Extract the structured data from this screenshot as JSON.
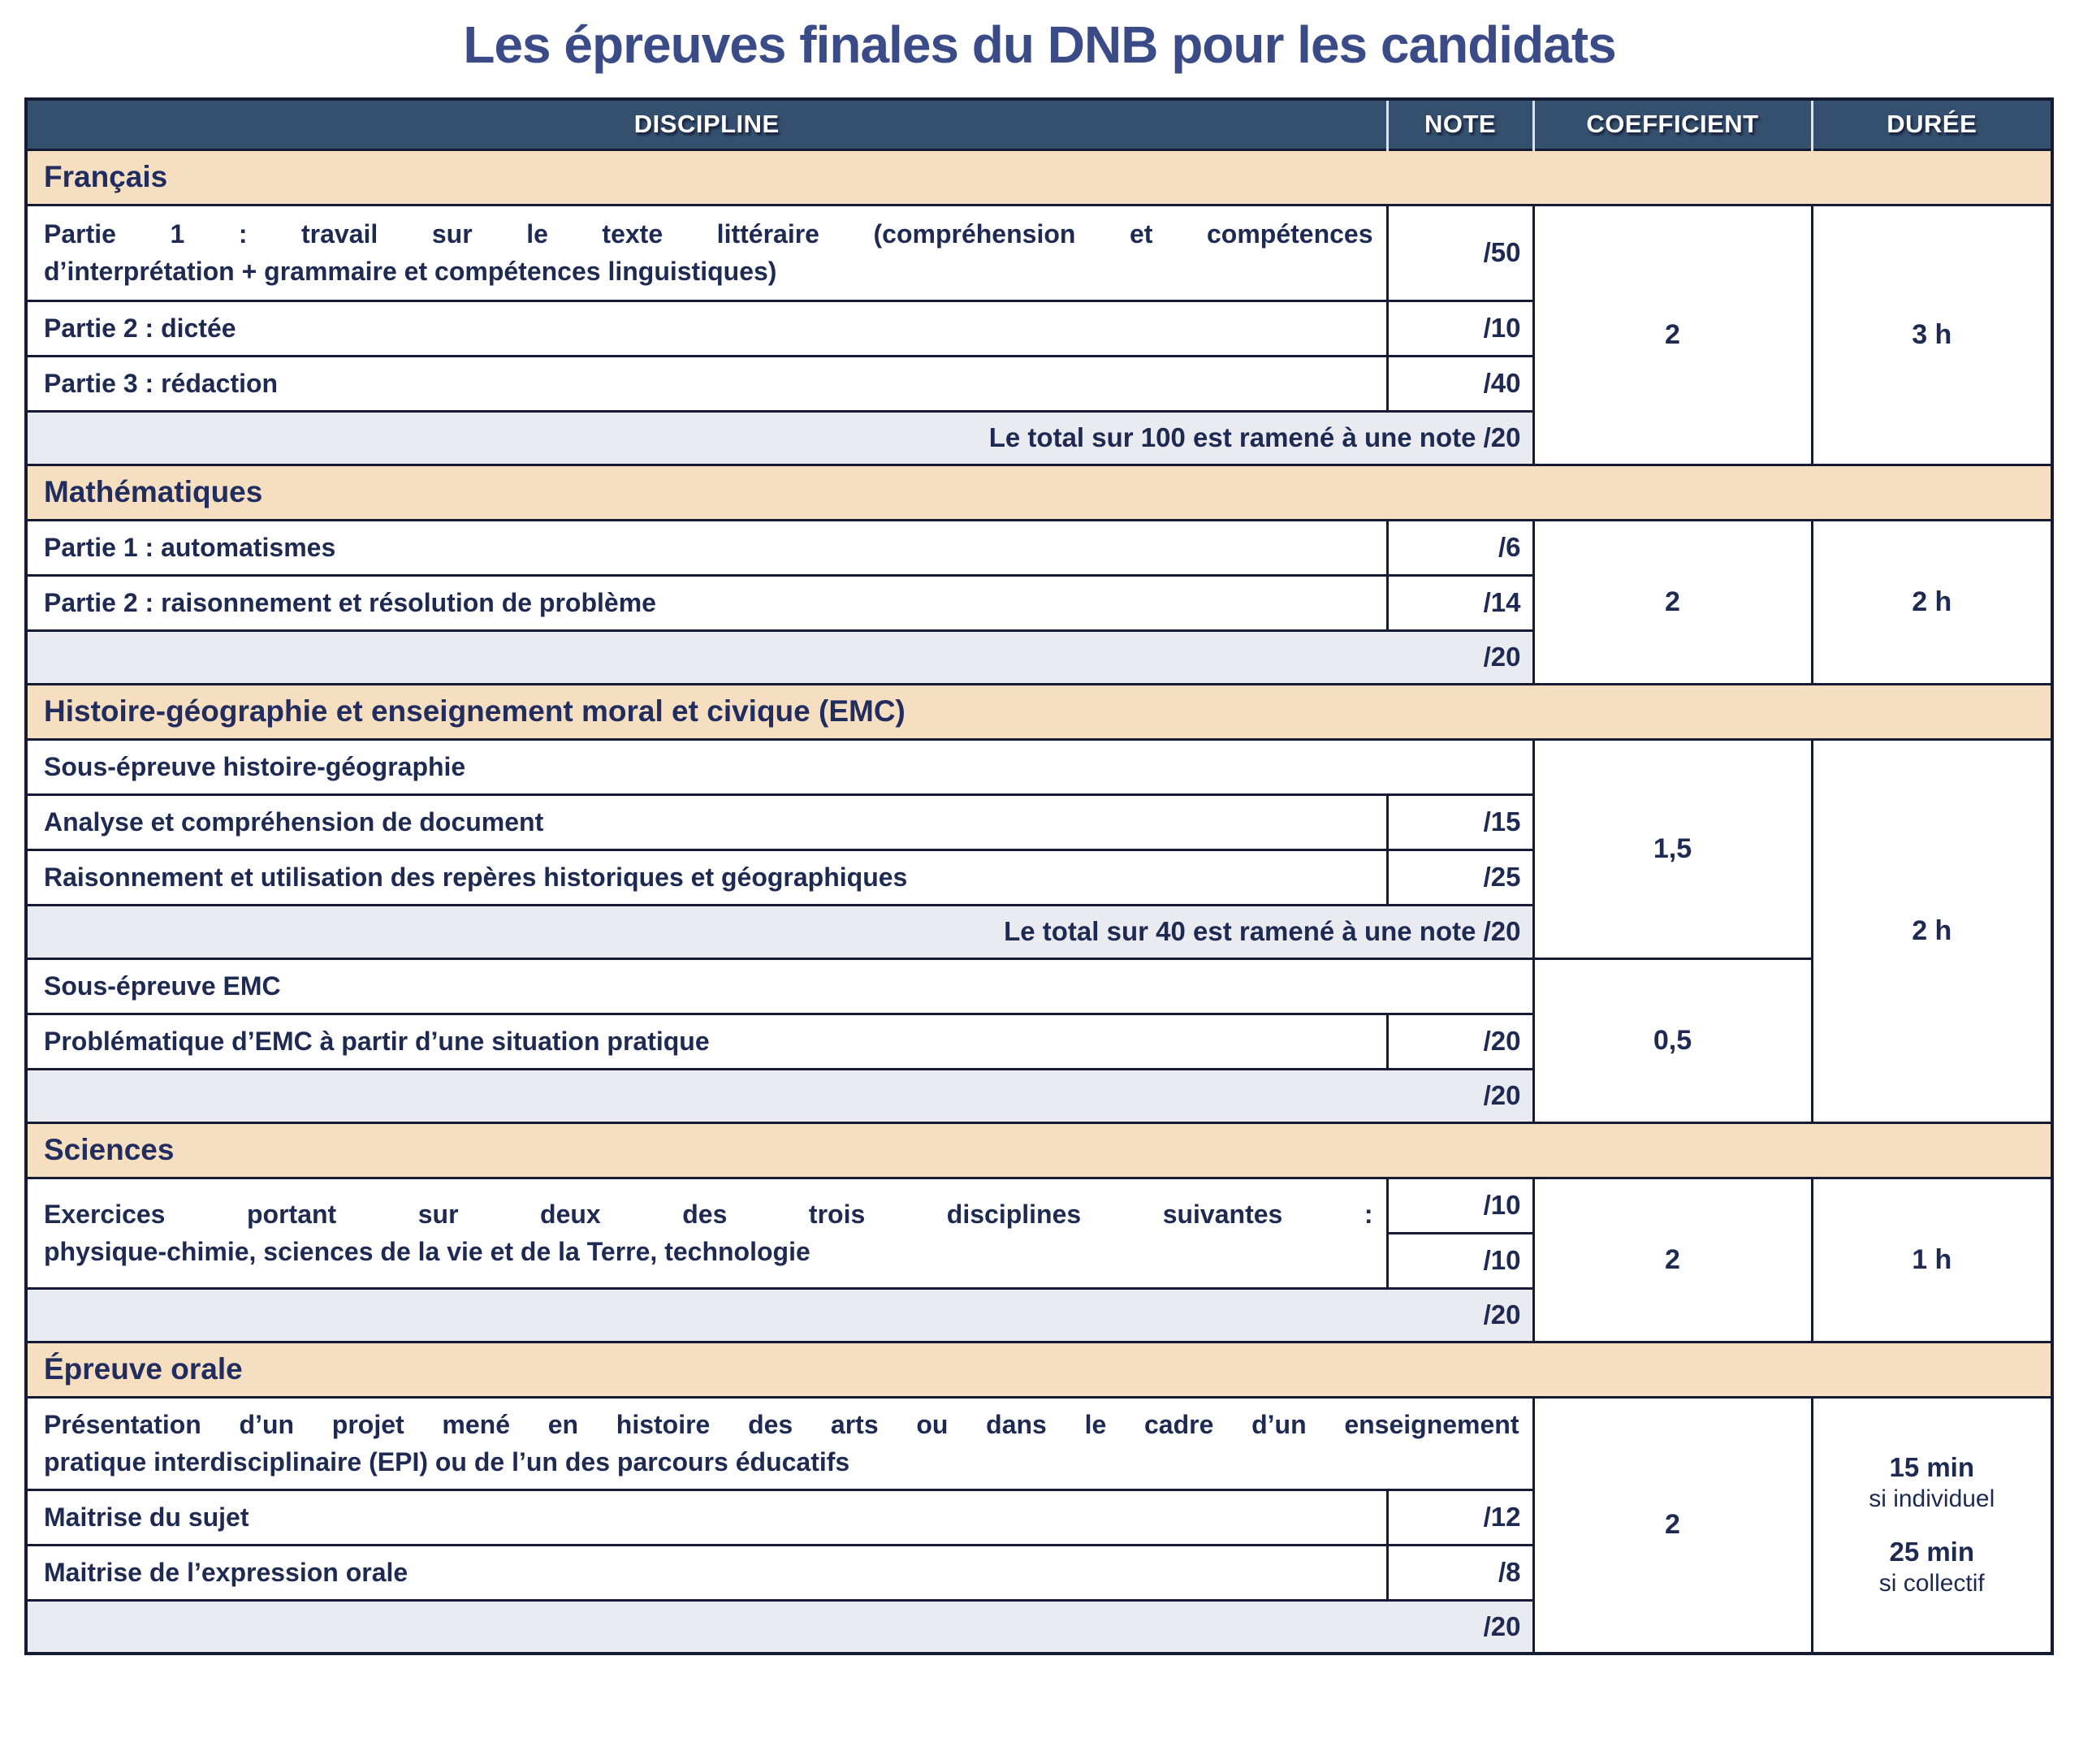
{
  "title": "Les épreuves finales du DNB pour les candidats",
  "colors": {
    "title_text": "#3b4b87",
    "header_bg": "#35506e",
    "header_text": "#ffffff",
    "section_bg": "#f5dfc0",
    "total_row_bg": "#e9ebf0",
    "border": "#141b33",
    "body_text": "#1e2a52"
  },
  "headers": {
    "discipline": "DISCIPLINE",
    "note": "NOTE",
    "coefficient": "COEFFICIENT",
    "duree": "DURÉE"
  },
  "francais": {
    "section": "Français",
    "p1_line1": "Partie 1 : travail sur le texte littéraire (compréhension et compétences",
    "p1_line2": "d’interprétation + grammaire et compétences linguistiques)",
    "p1_note": "/50",
    "p2": "Partie 2 : dictée",
    "p2_note": "/10",
    "p3": "Partie 3 : rédaction",
    "p3_note": "/40",
    "total": "Le total sur 100 est ramené à une note /20",
    "coefficient": "2",
    "duree": "3 h"
  },
  "mathematiques": {
    "section": "Mathématiques",
    "p1": "Partie 1 : automatismes",
    "p1_note": "/6",
    "p2": "Partie 2 : raisonnement et résolution de problème",
    "p2_note": "/14",
    "total": "/20",
    "coefficient": "2",
    "duree": "2 h"
  },
  "histoire": {
    "section": "Histoire-géographie et enseignement moral et civique (EMC)",
    "sous_epreuve_1": "Sous-épreuve histoire-géographie",
    "r1": "Analyse et compréhension de document",
    "r1_note": "/15",
    "r2": "Raisonnement et utilisation des repères historiques et géographiques",
    "r2_note": "/25",
    "total_1": "Le total sur 40 est ramené à une note /20",
    "sous_epreuve_2": "Sous-épreuve EMC",
    "r3": "Problématique d’EMC à partir d’une situation pratique",
    "r3_note": "/20",
    "total_2": "/20",
    "coefficient_1": "1,5",
    "coefficient_2": "0,5",
    "duree": "2 h"
  },
  "sciences": {
    "section": "Sciences",
    "line1": "Exercices portant sur deux des trois disciplines suivantes :",
    "line2": "physique-chimie, sciences de la vie et de la Terre, technologie",
    "note1": "/10",
    "note2": "/10",
    "total": "/20",
    "coefficient": "2",
    "duree": "1 h"
  },
  "orale": {
    "section": "Épreuve orale",
    "line1": "Présentation d’un projet mené en histoire des arts ou dans le cadre d’un enseignement",
    "line2": "pratique interdisciplinaire (EPI) ou de l’un des parcours éducatifs",
    "r1": "Maitrise du sujet",
    "r1_note": "/12",
    "r2": "Maitrise de l’expression orale",
    "r2_note": "/8",
    "total": "/20",
    "coefficient": "2",
    "duree_1": "15 min",
    "duree_1_sub": "si individuel",
    "duree_2": "25 min",
    "duree_2_sub": "si collectif"
  }
}
